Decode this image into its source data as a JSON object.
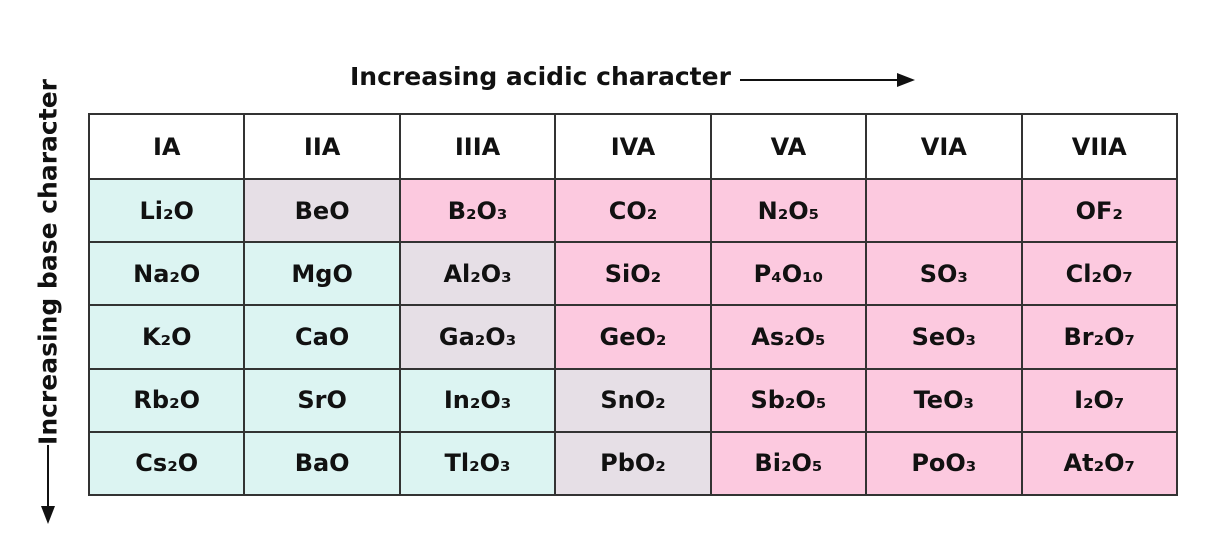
{
  "top_label": "Increasing acidic character",
  "side_label": "Increasing base character",
  "table": {
    "headers": [
      "IA",
      "IIA",
      "IIIA",
      "IVA",
      "VA",
      "VIA",
      "VIIA"
    ],
    "rows": [
      [
        "Li₂O",
        "BeO",
        "B₂O₃",
        "CO₂",
        "N₂O₅",
        null,
        "OF₂"
      ],
      [
        "Na₂O",
        "MgO",
        "Al₂O₃",
        "SiO₂",
        "P₄O₁₀",
        "SO₃",
        "Cl₂O₇"
      ],
      [
        "K₂O",
        "CaO",
        "Ga₂O₃",
        "GeO₂",
        "As₂O₅",
        "SeO₃",
        "Br₂O₇"
      ],
      [
        "Rb₂O",
        "SrO",
        "In₂O₃",
        "SnO₂",
        "Sb₂O₅",
        "TeO₃",
        "I₂O₇"
      ],
      [
        "Cs₂O",
        "BaO",
        "Tl₂O₃",
        "PbO₂",
        "Bi₂O₅",
        "PoO₃",
        "At₂O₇"
      ]
    ],
    "cell_colors": [
      [
        "#dcf4f2",
        "#e6dfe6",
        "#fcc9df",
        "#fcc9df",
        "#fcc9df",
        "#fcc9df",
        "#fcc9df"
      ],
      [
        "#dcf4f2",
        "#dcf4f2",
        "#e6dfe6",
        "#fcc9df",
        "#fcc9df",
        "#fcc9df",
        "#fcc9df"
      ],
      [
        "#dcf4f2",
        "#dcf4f2",
        "#e6dfe6",
        "#fcc9df",
        "#fcc9df",
        "#fcc9df",
        "#fcc9df"
      ],
      [
        "#dcf4f2",
        "#dcf4f2",
        "#dcf4f2",
        "#e6dfe6",
        "#fcc9df",
        "#fcc9df",
        "#fcc9df"
      ],
      [
        "#dcf4f2",
        "#dcf4f2",
        "#dcf4f2",
        "#e6dfe6",
        "#fcc9df",
        "#fcc9df",
        "#fcc9df"
      ]
    ]
  }
}
